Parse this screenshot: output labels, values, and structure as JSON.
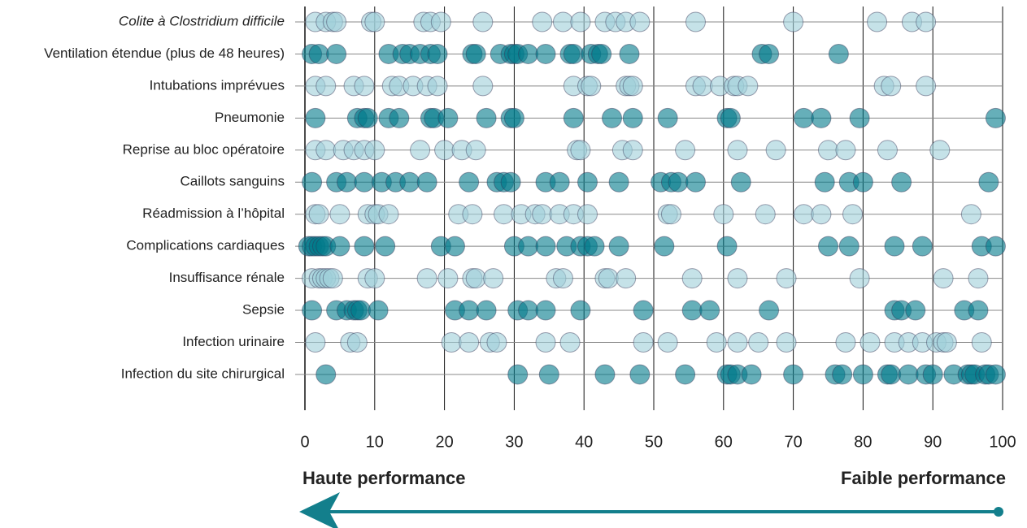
{
  "chart_data": {
    "type": "strip",
    "xlim": [
      0,
      100
    ],
    "xticks": [
      0,
      10,
      20,
      30,
      40,
      50,
      60,
      70,
      80,
      90,
      100
    ],
    "grid": true,
    "annotations": [
      "Haute performance",
      "Faible performance"
    ],
    "series": [
      {
        "name": "Colite à Clostridium difficile",
        "italic": true,
        "color": "#9fcfd8",
        "values": [
          1.5,
          3,
          4,
          4.5,
          9.5,
          10,
          17,
          18,
          19.5,
          25.5,
          34,
          37,
          39.5,
          43,
          44.5,
          46,
          48,
          56,
          70,
          82,
          87,
          89
        ]
      },
      {
        "name": "Ventilation étendue (plus de 48 heures)",
        "color": "#007a8a",
        "values": [
          1,
          2,
          4.5,
          12,
          14,
          15,
          16.5,
          18,
          19,
          24,
          24.5,
          28,
          29.5,
          30,
          30.5,
          32,
          34.5,
          38,
          38.5,
          41,
          42,
          42.5,
          46.5,
          65.5,
          66.5,
          76.5
        ]
      },
      {
        "name": "Intubations imprévues",
        "color": "#9fcfd8",
        "values": [
          1.5,
          3,
          7,
          8.5,
          12.5,
          13.5,
          15.5,
          17.5,
          19,
          25.5,
          38.5,
          40.5,
          41,
          46,
          46.5,
          47,
          56,
          57,
          59.5,
          61.5,
          62,
          63.5,
          83,
          84,
          89
        ]
      },
      {
        "name": "Pneumonie",
        "color": "#007a8a",
        "values": [
          1.5,
          7.5,
          8.5,
          9,
          12,
          13.5,
          18,
          18.5,
          20.5,
          26,
          29.5,
          30,
          38.5,
          44,
          47,
          52,
          60.5,
          61,
          71.5,
          74,
          79.5,
          99
        ]
      },
      {
        "name": "Reprise au bloc opératoire",
        "color": "#9fcfd8",
        "values": [
          1.5,
          3,
          5.5,
          7,
          8.5,
          10,
          16.5,
          20,
          22.5,
          24.5,
          39,
          39.5,
          45.5,
          47,
          54.5,
          62,
          67.5,
          75,
          77.5,
          83.5,
          91
        ]
      },
      {
        "name": "Caillots sanguins",
        "color": "#007a8a",
        "values": [
          1,
          4.5,
          6,
          8.5,
          11,
          13,
          15,
          17.5,
          23.5,
          27.5,
          28.5,
          29.5,
          34.5,
          36.5,
          40.5,
          45,
          51,
          52.5,
          53.5,
          56,
          62.5,
          74.5,
          78,
          80,
          85.5,
          98
        ]
      },
      {
        "name": "Réadmission à l’hôpital",
        "color": "#9fcfd8",
        "values": [
          1.5,
          2,
          5,
          9,
          10,
          10.5,
          12,
          22,
          24,
          28.5,
          31,
          33,
          34,
          36.5,
          38.5,
          40.5,
          52,
          52.5,
          60,
          66,
          71.5,
          74,
          78.5,
          95.5
        ]
      },
      {
        "name": "Complications cardiaques",
        "color": "#007a8a",
        "values": [
          0.5,
          1,
          1.5,
          2,
          2.5,
          3,
          5,
          8.5,
          11.5,
          19.5,
          21.5,
          30,
          32,
          34.5,
          37.5,
          39.5,
          40.5,
          41.5,
          45,
          51.5,
          60.5,
          75,
          78,
          84.5,
          88.5,
          97,
          99
        ]
      },
      {
        "name": "Insuffisance rénale",
        "color": "#9fcfd8",
        "values": [
          1,
          2,
          2.5,
          3,
          3.5,
          4,
          9,
          10,
          17.5,
          20.5,
          24,
          24.5,
          27,
          36,
          37,
          43,
          43.5,
          46,
          55.5,
          62,
          69,
          79.5,
          91.5,
          96.5
        ]
      },
      {
        "name": "Sepsie",
        "color": "#007a8a",
        "values": [
          1,
          4.5,
          6,
          7,
          7.5,
          8,
          10.5,
          21.5,
          23.5,
          26,
          30.5,
          32,
          34.5,
          39.5,
          48.5,
          55.5,
          58,
          66.5,
          84.5,
          85.5,
          87.5,
          94.5,
          96.5
        ]
      },
      {
        "name": "Infection urinaire",
        "color": "#9fcfd8",
        "values": [
          1.5,
          6.5,
          7.5,
          21,
          23.5,
          26.5,
          27.5,
          34.5,
          38,
          48.5,
          52,
          59,
          62,
          65,
          69,
          77.5,
          81,
          84.5,
          86.5,
          88.5,
          90.5,
          91.5,
          92,
          97
        ]
      },
      {
        "name": "Infection du site chirurgical",
        "color": "#007a8a",
        "values": [
          3,
          30.5,
          35,
          43,
          48,
          54.5,
          60.5,
          61,
          62,
          64,
          70,
          76,
          77,
          80,
          83.5,
          84,
          86.5,
          89,
          90,
          93,
          95,
          95.5,
          96,
          97.5,
          98,
          99
        ]
      }
    ]
  }
}
